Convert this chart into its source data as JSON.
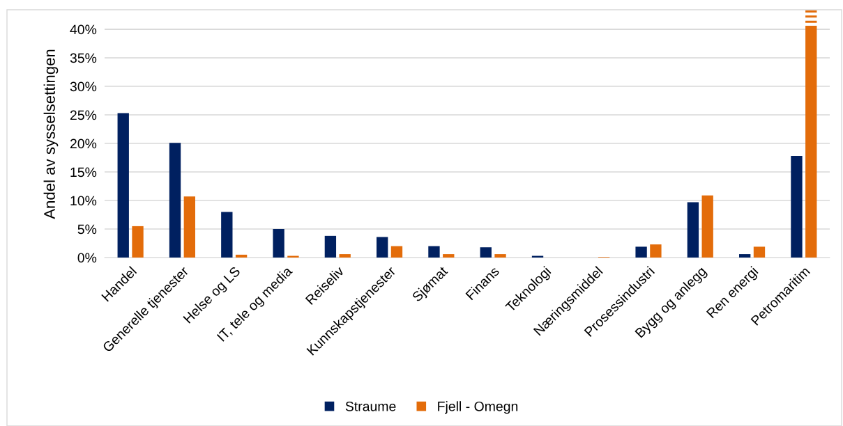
{
  "chart_data": {
    "type": "bar",
    "ylabel": "Andel av sysselsettingen",
    "categories": [
      "Handel",
      "Generelle tjenester",
      "Helse og LS",
      "IT, tele og media",
      "Reiseliv",
      "Kunnskapstjenester",
      "Sjømat",
      "Finans",
      "Teknologi",
      "Næringsmiddel",
      "Prosessindustri",
      "Bygg og anlegg",
      "Ren energi",
      "Petromaritim"
    ],
    "series": [
      {
        "name": "Straume",
        "color": "#002060",
        "values": [
          25.3,
          20.1,
          8.0,
          5.0,
          3.8,
          3.6,
          2.0,
          1.8,
          0.3,
          0.0,
          1.9,
          9.7,
          0.6,
          17.8
        ]
      },
      {
        "name": "Fjell - Omegn",
        "color": "#e36c0a",
        "values": [
          5.5,
          10.7,
          0.5,
          0.3,
          0.6,
          2.0,
          0.6,
          0.6,
          0.0,
          0.1,
          2.3,
          10.9,
          1.9,
          43.3
        ]
      }
    ],
    "ylim": [
      0,
      43.3
    ],
    "yticks": [
      {
        "value": 0,
        "label": "0%"
      },
      {
        "value": 5,
        "label": "5%"
      },
      {
        "value": 10,
        "label": "10%"
      },
      {
        "value": 15,
        "label": "15%"
      },
      {
        "value": 20,
        "label": "20%"
      },
      {
        "value": 25,
        "label": "25%"
      },
      {
        "value": 30,
        "label": "30%"
      },
      {
        "value": 35,
        "label": "35%"
      },
      {
        "value": 40,
        "label": "40%"
      }
    ],
    "grid": "y",
    "legend": "bottom"
  }
}
